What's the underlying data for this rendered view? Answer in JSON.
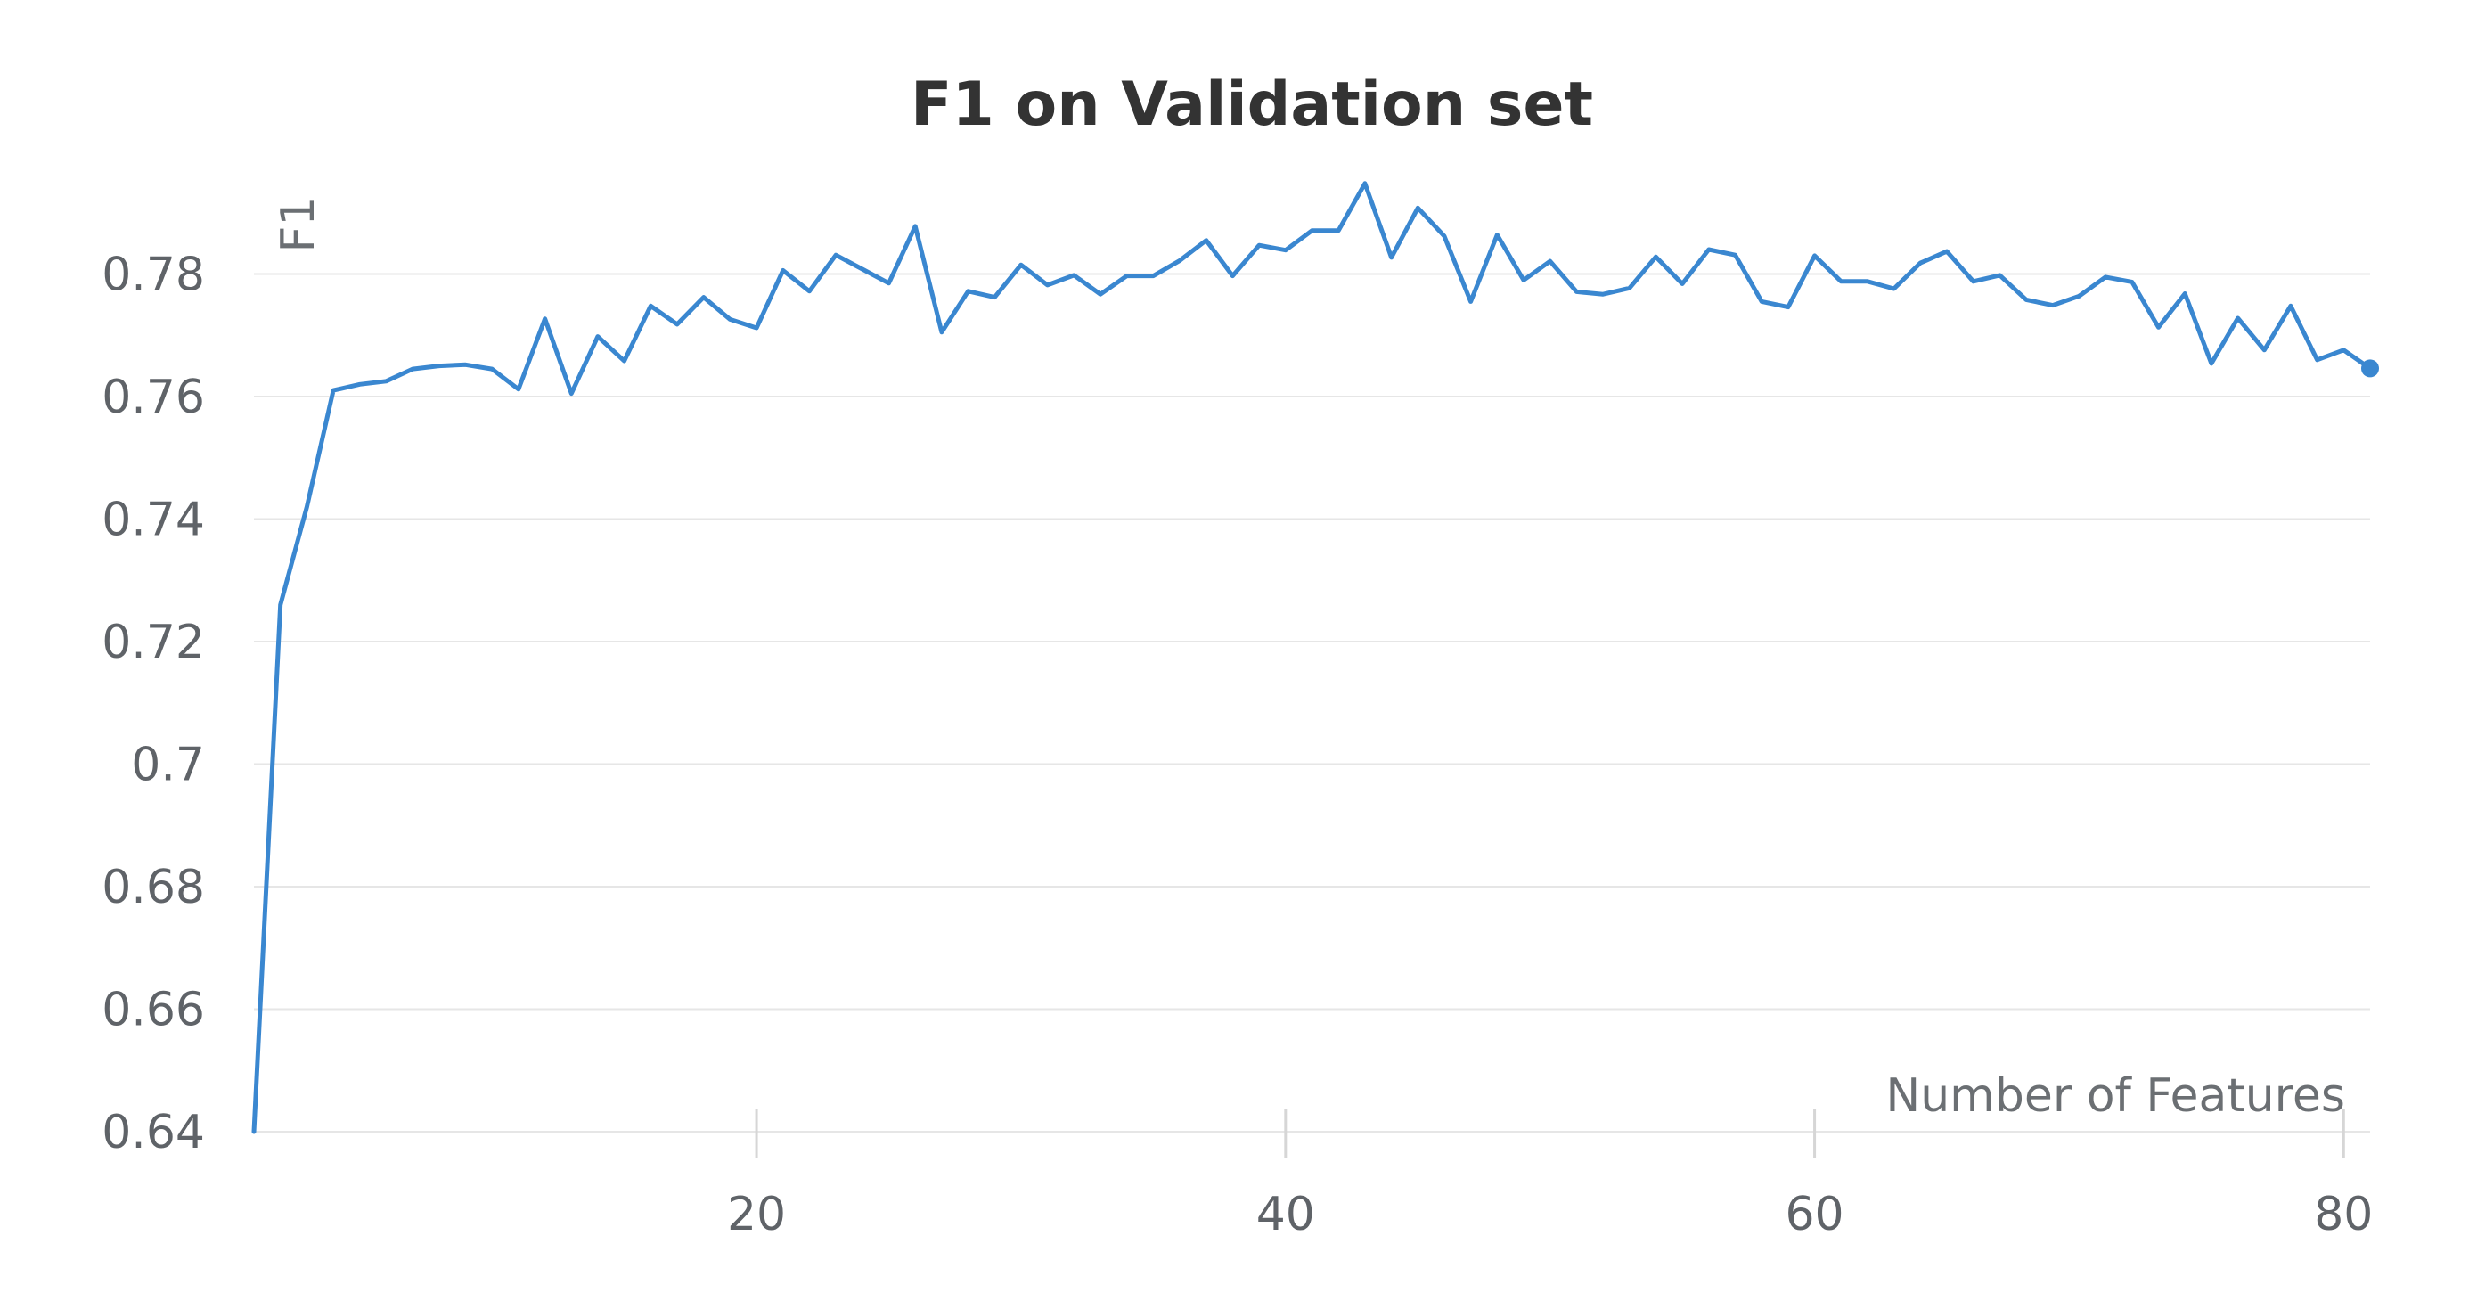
{
  "chart_data": {
    "type": "line",
    "title": "F1 on Validation set",
    "xlabel": "Number of Features",
    "ylabel": "F1",
    "xlim": [
      1,
      81
    ],
    "ylim": [
      0.64,
      0.8
    ],
    "x_ticks": [
      20,
      40,
      60,
      80
    ],
    "y_ticks": [
      0.64,
      0.66,
      0.68,
      0.7,
      0.72,
      0.74,
      0.76,
      0.78
    ],
    "y_tick_labels": [
      "0.64",
      "0.66",
      "0.68",
      "0.7",
      "0.72",
      "0.74",
      "0.76",
      "0.78"
    ],
    "grid": "horizontal",
    "legend": "none",
    "color": "#3a87d0",
    "series": [
      {
        "x": [
          1,
          2,
          3,
          4,
          5,
          6,
          7,
          8,
          9,
          10,
          11,
          12,
          13,
          14,
          15,
          16,
          17,
          18,
          19,
          20,
          21,
          22,
          23,
          24,
          25,
          26,
          27,
          28,
          29,
          30,
          31,
          32,
          33,
          34,
          35,
          36,
          37,
          38,
          39,
          40,
          41,
          42,
          43,
          44,
          45,
          46,
          47,
          48,
          49,
          50,
          51,
          52,
          53,
          54,
          55,
          56,
          57,
          58,
          59,
          60,
          61,
          62,
          63,
          64,
          65,
          66,
          67,
          68,
          69,
          70,
          71,
          72,
          73,
          74,
          75,
          76,
          77,
          78,
          79,
          80,
          81
        ],
        "values": [
          0.64,
          0.726,
          0.742,
          0.761,
          0.762,
          0.7625,
          0.7645,
          0.765,
          0.7652,
          0.7645,
          0.7612,
          0.7727,
          0.7605,
          0.7698,
          0.7658,
          0.7748,
          0.7718,
          0.7762,
          0.7726,
          0.7712,
          0.7806,
          0.7772,
          0.7831,
          0.7808,
          0.7785,
          0.7878,
          0.7705,
          0.7772,
          0.7762,
          0.7815,
          0.7782,
          0.7798,
          0.7767,
          0.7797,
          0.7797,
          0.7822,
          0.7855,
          0.7797,
          0.7847,
          0.7839,
          0.7871,
          0.7871,
          0.7948,
          0.7827,
          0.7908,
          0.7862,
          0.7755,
          0.7864,
          0.779,
          0.7821,
          0.7771,
          0.7767,
          0.7777,
          0.7828,
          0.7784,
          0.784,
          0.7831,
          0.7755,
          0.7746,
          0.783,
          0.7788,
          0.7788,
          0.7776,
          0.7818,
          0.7837,
          0.7788,
          0.7798,
          0.7758,
          0.7749,
          0.7764,
          0.7795,
          0.7787,
          0.7713,
          0.7768,
          0.7654,
          0.7728,
          0.7676,
          0.7748,
          0.766,
          0.7676,
          0.7646
        ]
      }
    ]
  }
}
